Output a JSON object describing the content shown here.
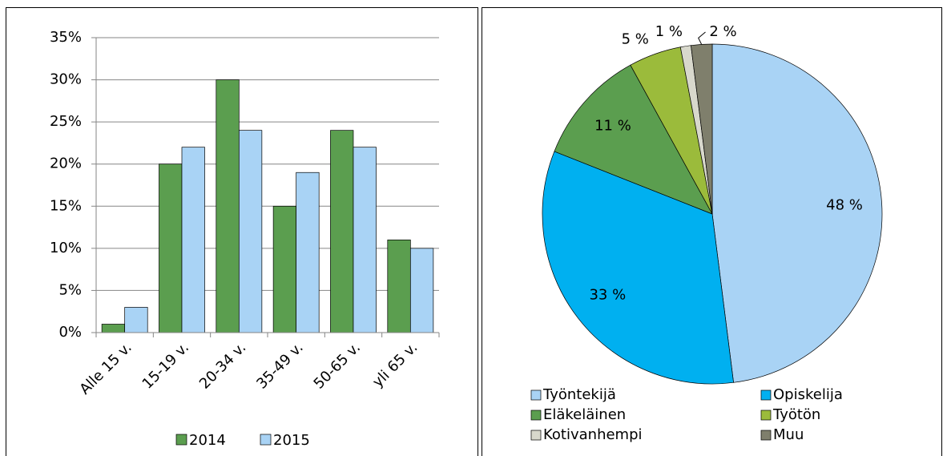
{
  "chart_data": [
    {
      "type": "bar",
      "categories": [
        "Alle 15 v.",
        "15-19 v.",
        "20-34 v.",
        "35-49 v.",
        "50-65 v.",
        "yli 65 v."
      ],
      "series": [
        {
          "name": "2014",
          "color": "#5b9e4f",
          "values": [
            1,
            20,
            30,
            15,
            24,
            11
          ]
        },
        {
          "name": "2015",
          "color": "#a9d3f5",
          "values": [
            3,
            22,
            24,
            19,
            22,
            10
          ]
        }
      ],
      "ylim": [
        0,
        35
      ],
      "yticks": [
        {
          "value": 0,
          "label": "0%"
        },
        {
          "value": 5,
          "label": "5%"
        },
        {
          "value": 10,
          "label": "10%"
        },
        {
          "value": 15,
          "label": "15%"
        },
        {
          "value": 20,
          "label": "20%"
        },
        {
          "value": 25,
          "label": "25%"
        },
        {
          "value": 30,
          "label": "30%"
        },
        {
          "value": 35,
          "label": "35%"
        }
      ],
      "grid": true,
      "legend": "bottom"
    },
    {
      "type": "pie",
      "categories": [
        "Työntekijä",
        "Opiskelija",
        "Eläkeläinen",
        "Työtön",
        "Kotivanhempi",
        "Muu"
      ],
      "values": [
        48,
        33,
        11,
        5,
        1,
        2
      ],
      "value_labels": [
        "48 %",
        "33 %",
        "11 %",
        "5 %",
        "1 %",
        "2 %"
      ],
      "colors": [
        "#a9d3f5",
        "#00b0f0",
        "#5b9e4f",
        "#9bbb3b",
        "#d8d8cc",
        "#7f7f6c"
      ],
      "legend": "bottom"
    }
  ]
}
